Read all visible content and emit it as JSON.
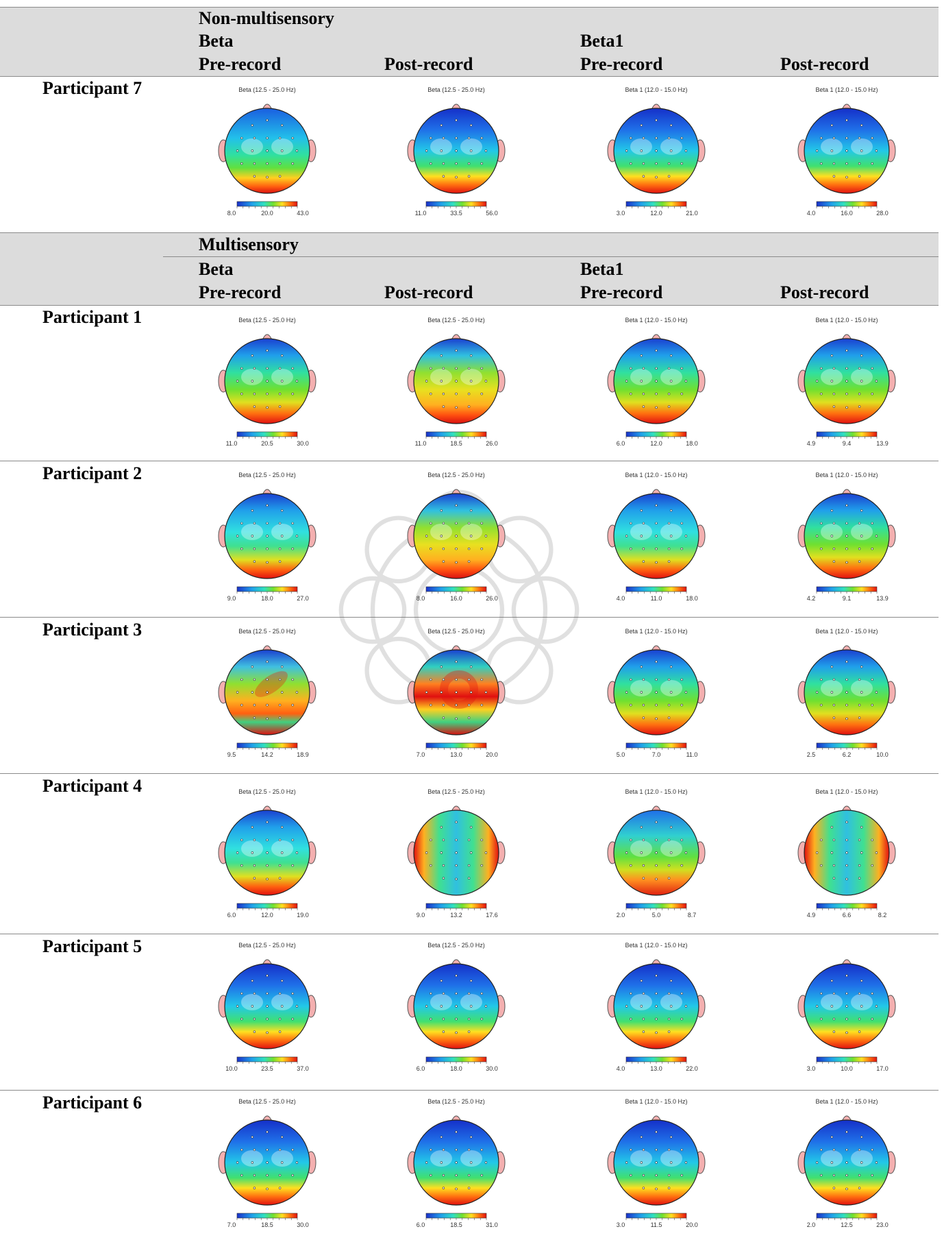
{
  "sections": [
    {
      "group": "Non-multisensory",
      "band_label": "Beta",
      "band_label_2": "Beta1",
      "columns": [
        "Pre-record",
        "Post-record",
        "Pre-record",
        "Post-record"
      ],
      "rows": [
        {
          "participant": "Participant 7",
          "maps": [
            {
              "title": "Beta (12.5 - 25.0 Hz)",
              "ticks": [
                "8.0",
                "20.0",
                "43.0"
              ],
              "pattern": "bottom-hot-low"
            },
            {
              "title": "Beta (12.5 - 25.0 Hz)",
              "ticks": [
                "11.0",
                "33.5",
                "56.0"
              ],
              "pattern": "bottom-hot-cold"
            },
            {
              "title": "Beta 1 (12.0 - 15.0 Hz)",
              "ticks": [
                "3.0",
                "12.0",
                "21.0"
              ],
              "pattern": "bottom-hot-cold"
            },
            {
              "title": "Beta 1 (12.0 - 15.0 Hz)",
              "ticks": [
                "4.0",
                "16.0",
                "28.0"
              ],
              "pattern": "bottom-hot-cold"
            }
          ]
        }
      ]
    },
    {
      "group": "Multisensory",
      "band_label": "Beta",
      "band_label_2": "Beta1",
      "columns": [
        "Pre-record",
        "Post-record",
        "Pre-record",
        "Post-record"
      ],
      "rows": [
        {
          "participant": "Participant 1",
          "maps": [
            {
              "title": "Beta (12.5 - 25.0 Hz)",
              "ticks": [
                "11.0",
                "20.5",
                "30.0"
              ],
              "pattern": "green-center"
            },
            {
              "title": "Beta (12.5 - 25.0 Hz)",
              "ticks": [
                "11.0",
                "18.5",
                "26.0"
              ],
              "pattern": "yellow-center"
            },
            {
              "title": "Beta 1 (12.0 - 15.0 Hz)",
              "ticks": [
                "6.0",
                "12.0",
                "18.0"
              ],
              "pattern": "green-center"
            },
            {
              "title": "Beta 1 (12.0 - 15.0 Hz)",
              "ticks": [
                "4.9",
                "9.4",
                "13.9"
              ],
              "pattern": "green-center"
            }
          ]
        },
        {
          "participant": "Participant 2",
          "maps": [
            {
              "title": "Beta (12.5 - 25.0 Hz)",
              "ticks": [
                "9.0",
                "18.0",
                "27.0"
              ],
              "pattern": "cyan-center"
            },
            {
              "title": "Beta (12.5 - 25.0 Hz)",
              "ticks": [
                "8.0",
                "16.0",
                "26.0"
              ],
              "pattern": "yellow-center"
            },
            {
              "title": "Beta 1 (12.0 - 15.0 Hz)",
              "ticks": [
                "4.0",
                "11.0",
                "18.0"
              ],
              "pattern": "cyan-center"
            },
            {
              "title": "Beta 1 (12.0 - 15.0 Hz)",
              "ticks": [
                "4.2",
                "9.1",
                "13.9"
              ],
              "pattern": "green-center"
            }
          ]
        },
        {
          "participant": "Participant 3",
          "maps": [
            {
              "title": "Beta (12.5 - 25.0 Hz)",
              "ticks": [
                "9.5",
                "14.2",
                "18.9"
              ],
              "pattern": "red-blob"
            },
            {
              "title": "Beta (12.5 - 25.0 Hz)",
              "ticks": [
                "7.0",
                "13.0",
                "20.0"
              ],
              "pattern": "red-ring"
            },
            {
              "title": "Beta 1 (12.0 - 15.0 Hz)",
              "ticks": [
                "5.0",
                "7.0",
                "11.0"
              ],
              "pattern": "green-center"
            },
            {
              "title": "Beta 1 (12.0 - 15.0 Hz)",
              "ticks": [
                "2.5",
                "6.2",
                "10.0"
              ],
              "pattern": "green-center"
            }
          ]
        },
        {
          "participant": "Participant 4",
          "maps": [
            {
              "title": "Beta (12.5 - 25.0 Hz)",
              "ticks": [
                "6.0",
                "12.0",
                "19.0"
              ],
              "pattern": "cyan-center"
            },
            {
              "title": "Beta (12.5 - 25.0 Hz)",
              "ticks": [
                "9.0",
                "13.2",
                "17.6"
              ],
              "pattern": "side-hot"
            },
            {
              "title": "Beta 1 (12.0 - 15.0 Hz)",
              "ticks": [
                "2.0",
                "5.0",
                "8.7"
              ],
              "pattern": "bottom-hot-green"
            },
            {
              "title": "Beta 1 (12.0 - 15.0 Hz)",
              "ticks": [
                "4.9",
                "6.6",
                "8.2"
              ],
              "pattern": "side-hot"
            }
          ]
        },
        {
          "participant": "Participant 5",
          "maps": [
            {
              "title": "Beta (12.5 - 25.0 Hz)",
              "ticks": [
                "10.0",
                "23.5",
                "37.0"
              ],
              "pattern": "bottom-hot-cold"
            },
            {
              "title": "Beta (12.5 - 25.0 Hz)",
              "ticks": [
                "6.0",
                "18.0",
                "30.0"
              ],
              "pattern": "bottom-hot-cold"
            },
            {
              "title": "Beta 1 (12.0 - 15.0 Hz)",
              "ticks": [
                "4.0",
                "13.0",
                "22.0"
              ],
              "pattern": "bottom-hot-cold"
            },
            {
              "title": "",
              "ticks": [
                "3.0",
                "10.0",
                "17.0"
              ],
              "pattern": "bottom-hot-cold"
            }
          ]
        },
        {
          "participant": "Participant 6",
          "maps": [
            {
              "title": "Beta (12.5 - 25.0 Hz)",
              "ticks": [
                "7.0",
                "18.5",
                "30.0"
              ],
              "pattern": "bottom-hot-cold"
            },
            {
              "title": "Beta (12.5 - 25.0 Hz)",
              "ticks": [
                "6.0",
                "18.5",
                "31.0"
              ],
              "pattern": "bottom-hot-cold"
            },
            {
              "title": "Beta 1 (12.0 - 15.0 Hz)",
              "ticks": [
                "3.0",
                "11.5",
                "20.0"
              ],
              "pattern": "bottom-hot-cold"
            },
            {
              "title": "Beta 1 (12.0 - 15.0 Hz)",
              "ticks": [
                "2.0",
                "12.5",
                "23.0"
              ],
              "pattern": "bottom-hot-cold"
            }
          ]
        }
      ]
    }
  ]
}
